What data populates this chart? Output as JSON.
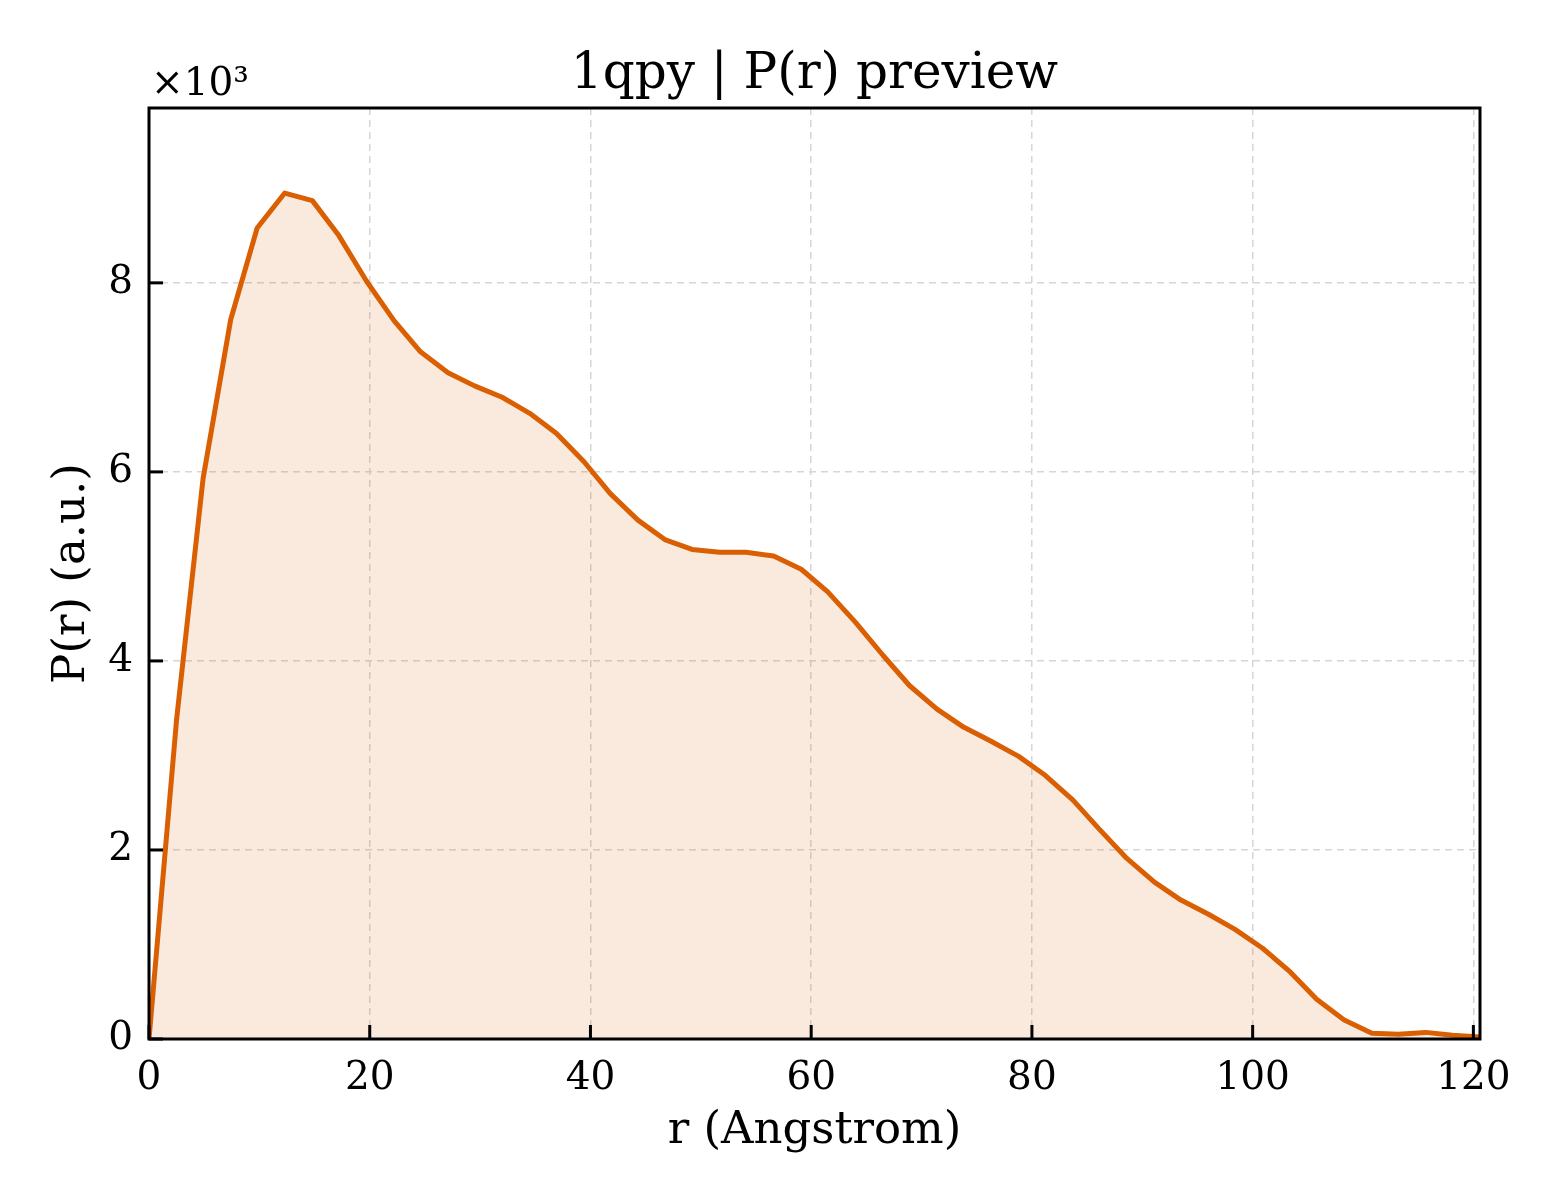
{
  "chart_data": {
    "type": "area",
    "title": "1qpy | P(r) preview",
    "xlabel": "r (Angstrom)",
    "ylabel": "P(r) (a.u.)",
    "annotations": [
      "×10³"
    ],
    "x": [
      0,
      2.5,
      4.9,
      7.4,
      9.8,
      12.3,
      14.8,
      17.2,
      19.7,
      22.2,
      24.6,
      27.1,
      29.5,
      32.0,
      34.5,
      36.9,
      39.4,
      41.8,
      44.3,
      46.8,
      49.2,
      51.7,
      54.1,
      56.6,
      59.1,
      61.5,
      64.0,
      66.5,
      68.9,
      71.4,
      73.8,
      76.3,
      78.8,
      81.2,
      83.7,
      86.1,
      88.6,
      91.1,
      93.5,
      96.0,
      98.4,
      100.9,
      103.4,
      105.8,
      108.3,
      110.8,
      113.2,
      115.7,
      118.1,
      120.6
    ],
    "values": [
      0,
      3.38,
      5.93,
      7.61,
      8.58,
      8.95,
      8.87,
      8.5,
      8.02,
      7.6,
      7.27,
      7.05,
      6.91,
      6.79,
      6.62,
      6.41,
      6.11,
      5.77,
      5.49,
      5.28,
      5.18,
      5.15,
      5.15,
      5.11,
      4.97,
      4.73,
      4.41,
      4.06,
      3.74,
      3.49,
      3.3,
      3.15,
      2.99,
      2.79,
      2.53,
      2.22,
      1.91,
      1.66,
      1.47,
      1.32,
      1.16,
      0.96,
      0.71,
      0.42,
      0.2,
      0.06,
      0.05,
      0.07,
      0.04,
      0.02
    ],
    "color": "#d95f02",
    "xlim": [
      0,
      120.6
    ],
    "ylim": [
      0,
      9.85
    ],
    "xticks": [
      0,
      20,
      40,
      60,
      80,
      100,
      120
    ],
    "yticks": [
      0,
      2,
      4,
      6,
      8
    ],
    "grid": true
  }
}
